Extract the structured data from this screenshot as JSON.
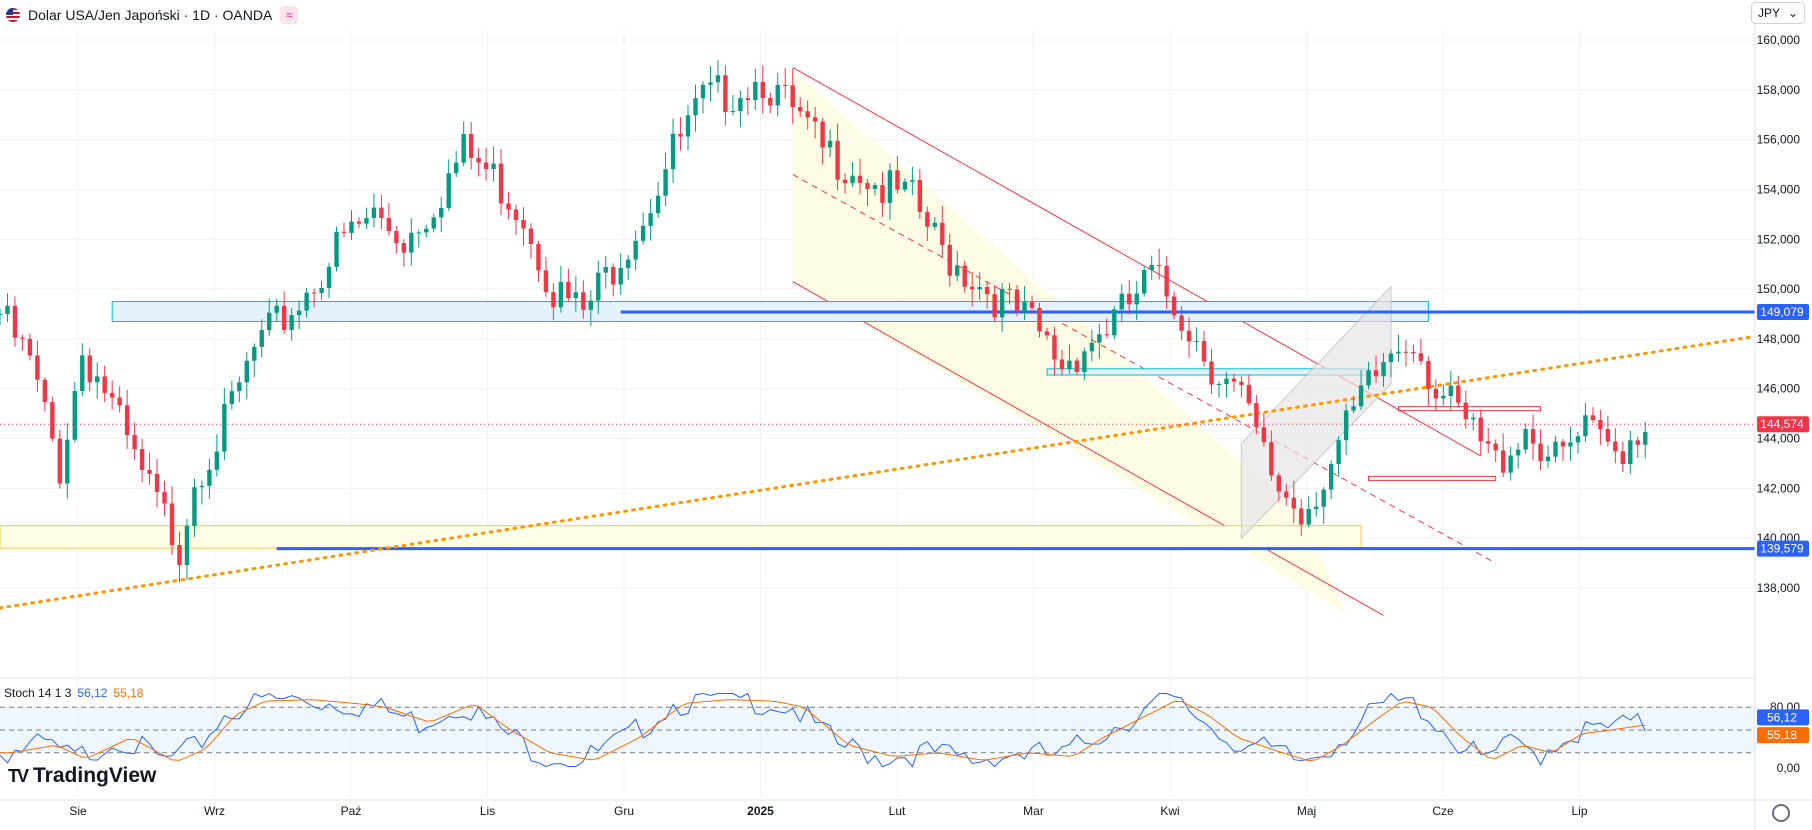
{
  "header": {
    "symbol_title": "Dolar USA/Jen Japoński · 1D · OANDA",
    "currency": "JPY",
    "market_icon": "wave-icon"
  },
  "indicator": {
    "label": "Stoch 14 1 3",
    "k_value": "56,12",
    "d_value": "55,18"
  },
  "branding": {
    "logo_text": "TradingView"
  },
  "colors": {
    "up": "#089981",
    "down": "#f23645",
    "level_blue": "#2962ff",
    "trendline_orange": "#ff9800",
    "channel_red": "#f23645",
    "stoch_k": "#2962ff",
    "stoch_d": "#ff6d00",
    "price_tag": "#f23645"
  },
  "chart_data": {
    "type": "candlestick",
    "title": "",
    "x_labels": [
      "Sie",
      "Wrz",
      "Paź",
      "Lis",
      "Gru",
      "2025",
      "Lut",
      "Mar",
      "Kwi",
      "Maj",
      "Cze",
      "Lip"
    ],
    "y_ticks": [
      "160,000",
      "158,000",
      "156,000",
      "154,000",
      "152,000",
      "150,000",
      "148,000",
      "146,000",
      "144,000",
      "142,000",
      "140,000",
      "138,000"
    ],
    "ylim": [
      137,
      161
    ],
    "current_price": "144,574",
    "levels": [
      {
        "label": "149,079",
        "value": 149.079
      },
      {
        "label": "139,579",
        "value": 139.579
      }
    ],
    "close_path": [
      [
        0,
        149.0
      ],
      [
        4,
        147.0
      ],
      [
        8,
        142.8
      ],
      [
        11,
        147.5
      ],
      [
        14,
        146.0
      ],
      [
        18,
        143.0
      ],
      [
        22,
        140.8
      ],
      [
        24,
        139.7
      ],
      [
        26,
        142.5
      ],
      [
        30,
        144.5
      ],
      [
        34,
        147.5
      ],
      [
        40,
        149.5
      ],
      [
        46,
        152.0
      ],
      [
        50,
        153.0
      ],
      [
        54,
        152.0
      ],
      [
        58,
        153.5
      ],
      [
        62,
        155.5
      ],
      [
        66,
        154.5
      ],
      [
        70,
        153.0
      ],
      [
        74,
        150.0
      ],
      [
        78,
        149.0
      ],
      [
        82,
        151.0
      ],
      [
        86,
        153.0
      ],
      [
        90,
        155.5
      ],
      [
        94,
        157.5
      ],
      [
        98,
        158.0
      ],
      [
        102,
        158.5
      ],
      [
        106,
        157.0
      ],
      [
        110,
        155.5
      ],
      [
        114,
        155.0
      ],
      [
        118,
        154.0
      ],
      [
        122,
        153.5
      ],
      [
        126,
        151.5
      ],
      [
        130,
        150.5
      ],
      [
        134,
        149.5
      ],
      [
        138,
        148.5
      ],
      [
        142,
        147.0
      ],
      [
        146,
        148.0
      ],
      [
        150,
        149.0
      ],
      [
        154,
        150.5
      ],
      [
        158,
        149.0
      ],
      [
        162,
        147.0
      ],
      [
        166,
        145.5
      ],
      [
        170,
        142.5
      ],
      [
        174,
        141.0
      ],
      [
        178,
        143.0
      ],
      [
        182,
        145.5
      ],
      [
        186,
        147.5
      ],
      [
        189,
        148.2
      ],
      [
        192,
        146.0
      ],
      [
        196,
        144.5
      ],
      [
        200,
        143.0
      ],
      [
        204,
        144.5
      ],
      [
        208,
        143.0
      ],
      [
        212,
        144.2
      ],
      [
        216,
        143.5
      ],
      [
        220,
        144.6
      ]
    ],
    "annotations": {
      "resistance_zone": [
        148.7,
        149.5
      ],
      "support_zone": [
        139.6,
        140.5
      ],
      "rising_trendline": [
        137.2,
        148.1
      ],
      "consolidation_box_top": 145.2,
      "consolidation_box_bottom": 142.4
    },
    "stochastic": {
      "name": "Stoch 14 1 3",
      "k_last": 56.12,
      "d_last": 55.18,
      "y_ticks": [
        "80,00",
        "0,00"
      ],
      "ylim": [
        0,
        100
      ],
      "levels": [
        80,
        50,
        20
      ],
      "k_path": [
        [
          0,
          20
        ],
        [
          6,
          30
        ],
        [
          10,
          12
        ],
        [
          16,
          40
        ],
        [
          22,
          8
        ],
        [
          26,
          25
        ],
        [
          30,
          70
        ],
        [
          34,
          88
        ],
        [
          40,
          90
        ],
        [
          46,
          85
        ],
        [
          50,
          80
        ],
        [
          56,
          60
        ],
        [
          62,
          85
        ],
        [
          66,
          55
        ],
        [
          72,
          20
        ],
        [
          78,
          10
        ],
        [
          84,
          40
        ],
        [
          90,
          85
        ],
        [
          96,
          90
        ],
        [
          102,
          88
        ],
        [
          106,
          80
        ],
        [
          112,
          30
        ],
        [
          118,
          15
        ],
        [
          124,
          20
        ],
        [
          130,
          10
        ],
        [
          136,
          20
        ],
        [
          142,
          15
        ],
        [
          146,
          40
        ],
        [
          150,
          60
        ],
        [
          156,
          90
        ],
        [
          160,
          70
        ],
        [
          164,
          40
        ],
        [
          170,
          20
        ],
        [
          174,
          8
        ],
        [
          178,
          30
        ],
        [
          182,
          60
        ],
        [
          186,
          88
        ],
        [
          190,
          80
        ],
        [
          194,
          40
        ],
        [
          198,
          10
        ],
        [
          202,
          30
        ],
        [
          206,
          20
        ],
        [
          210,
          45
        ],
        [
          214,
          50
        ],
        [
          218,
          56
        ],
        [
          220,
          56.12
        ]
      ]
    }
  }
}
